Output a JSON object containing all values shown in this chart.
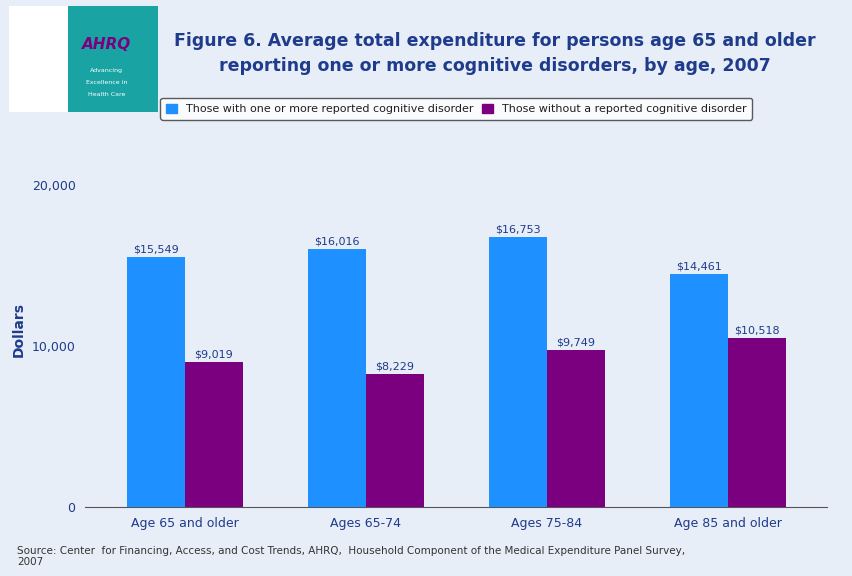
{
  "title": "Figure 6. Average total expenditure for persons age 65 and older\nreporting one or more cognitive disorders, by age, 2007",
  "categories": [
    "Age 65 and older",
    "Ages 65-74",
    "Ages 75-84",
    "Age 85 and older"
  ],
  "with_disorder": [
    15549,
    16016,
    16753,
    14461
  ],
  "without_disorder": [
    9019,
    8229,
    9749,
    10518
  ],
  "with_labels": [
    "$15,549",
    "$16,016",
    "$16,753",
    "$14,461"
  ],
  "without_labels": [
    "$9,019",
    "$8,229",
    "$9,749",
    "$10,518"
  ],
  "color_with": "#1E90FF",
  "color_without": "#7B0080",
  "ylabel": "Dollars",
  "ylim": [
    0,
    22000
  ],
  "yticks": [
    0,
    10000,
    20000
  ],
  "legend_with": "Those with one or more reported cognitive disorder",
  "legend_without": "Those without a reported cognitive disorder",
  "source_text": "Source: Center  for Financing, Access, and Cost Trends, AHRQ,  Household Component of the Medical Expenditure Panel Survey,\n2007",
  "bg_color": "#E8EEF7",
  "chart_bg": "#E8EEF7",
  "header_bg": "#FFFFFF",
  "bar_width": 0.32,
  "title_color": "#1F3B8C",
  "axis_label_color": "#1F3B8C",
  "tick_label_color": "#1F3B8C",
  "bar_label_color": "#1F3B8C",
  "dark_blue_line": "#00008B",
  "light_blue_line": "#4472C4"
}
